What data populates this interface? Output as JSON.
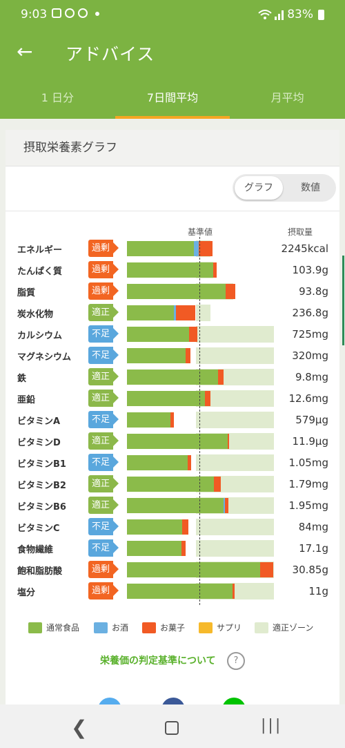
{
  "status": {
    "time": "9:03",
    "battery": "83%"
  },
  "header": {
    "title": "アドバイス"
  },
  "tabs": [
    {
      "label": "1 日分"
    },
    {
      "label": "7日間平均"
    },
    {
      "label": "月平均"
    }
  ],
  "section": {
    "title": "摂取栄養素グラフ"
  },
  "toggle": {
    "graph": "グラフ",
    "values": "数値"
  },
  "columns": {
    "standard": "基準値",
    "intake": "摂取量"
  },
  "nutrients": [
    {
      "name": "エネルギー",
      "status": "過剰",
      "value": "2245kcal"
    },
    {
      "name": "たんぱく質",
      "status": "過剰",
      "value": "103.9g"
    },
    {
      "name": "脂質",
      "status": "過剰",
      "value": "93.8g"
    },
    {
      "name": "炭水化物",
      "status": "適正",
      "value": "236.8g"
    },
    {
      "name": "カルシウム",
      "status": "不足",
      "value": "725mg"
    },
    {
      "name": "マグネシウム",
      "status": "不足",
      "value": "320mg"
    },
    {
      "name": "鉄",
      "status": "適正",
      "value": "9.8mg"
    },
    {
      "name": "亜鉛",
      "status": "適正",
      "value": "12.6mg"
    },
    {
      "name": "ビタミンA",
      "status": "不足",
      "value": "579μg"
    },
    {
      "name": "ビタミンD",
      "status": "適正",
      "value": "11.9μg"
    },
    {
      "name": "ビタミンB1",
      "status": "不足",
      "value": "1.05mg"
    },
    {
      "name": "ビタミンB2",
      "status": "適正",
      "value": "1.79mg"
    },
    {
      "name": "ビタミンB6",
      "status": "適正",
      "value": "1.95mg"
    },
    {
      "name": "ビタミンC",
      "status": "不足",
      "value": "84mg"
    },
    {
      "name": "食物繊維",
      "status": "不足",
      "value": "17.1g"
    },
    {
      "name": "飽和脂肪酸",
      "status": "過剰",
      "value": "30.85g"
    },
    {
      "name": "塩分",
      "status": "過剰",
      "value": "11g"
    }
  ],
  "legend": [
    {
      "label": "通常食品",
      "color": "#8bbb4a"
    },
    {
      "label": "お酒",
      "color": "#6bb0e1"
    },
    {
      "label": "お菓子",
      "color": "#f15a24"
    },
    {
      "label": "サプリ",
      "color": "#f6b92b"
    },
    {
      "label": "適正ゾーン",
      "color": "#e0ebcf"
    }
  ],
  "link": {
    "label": "栄養価の判定基準について",
    "icon": "?"
  },
  "colors": {
    "brand": "#7cb342",
    "accent": "#f5a623",
    "over": "#f26522",
    "ok": "#8cb84a",
    "low": "#5aa7dd"
  }
}
